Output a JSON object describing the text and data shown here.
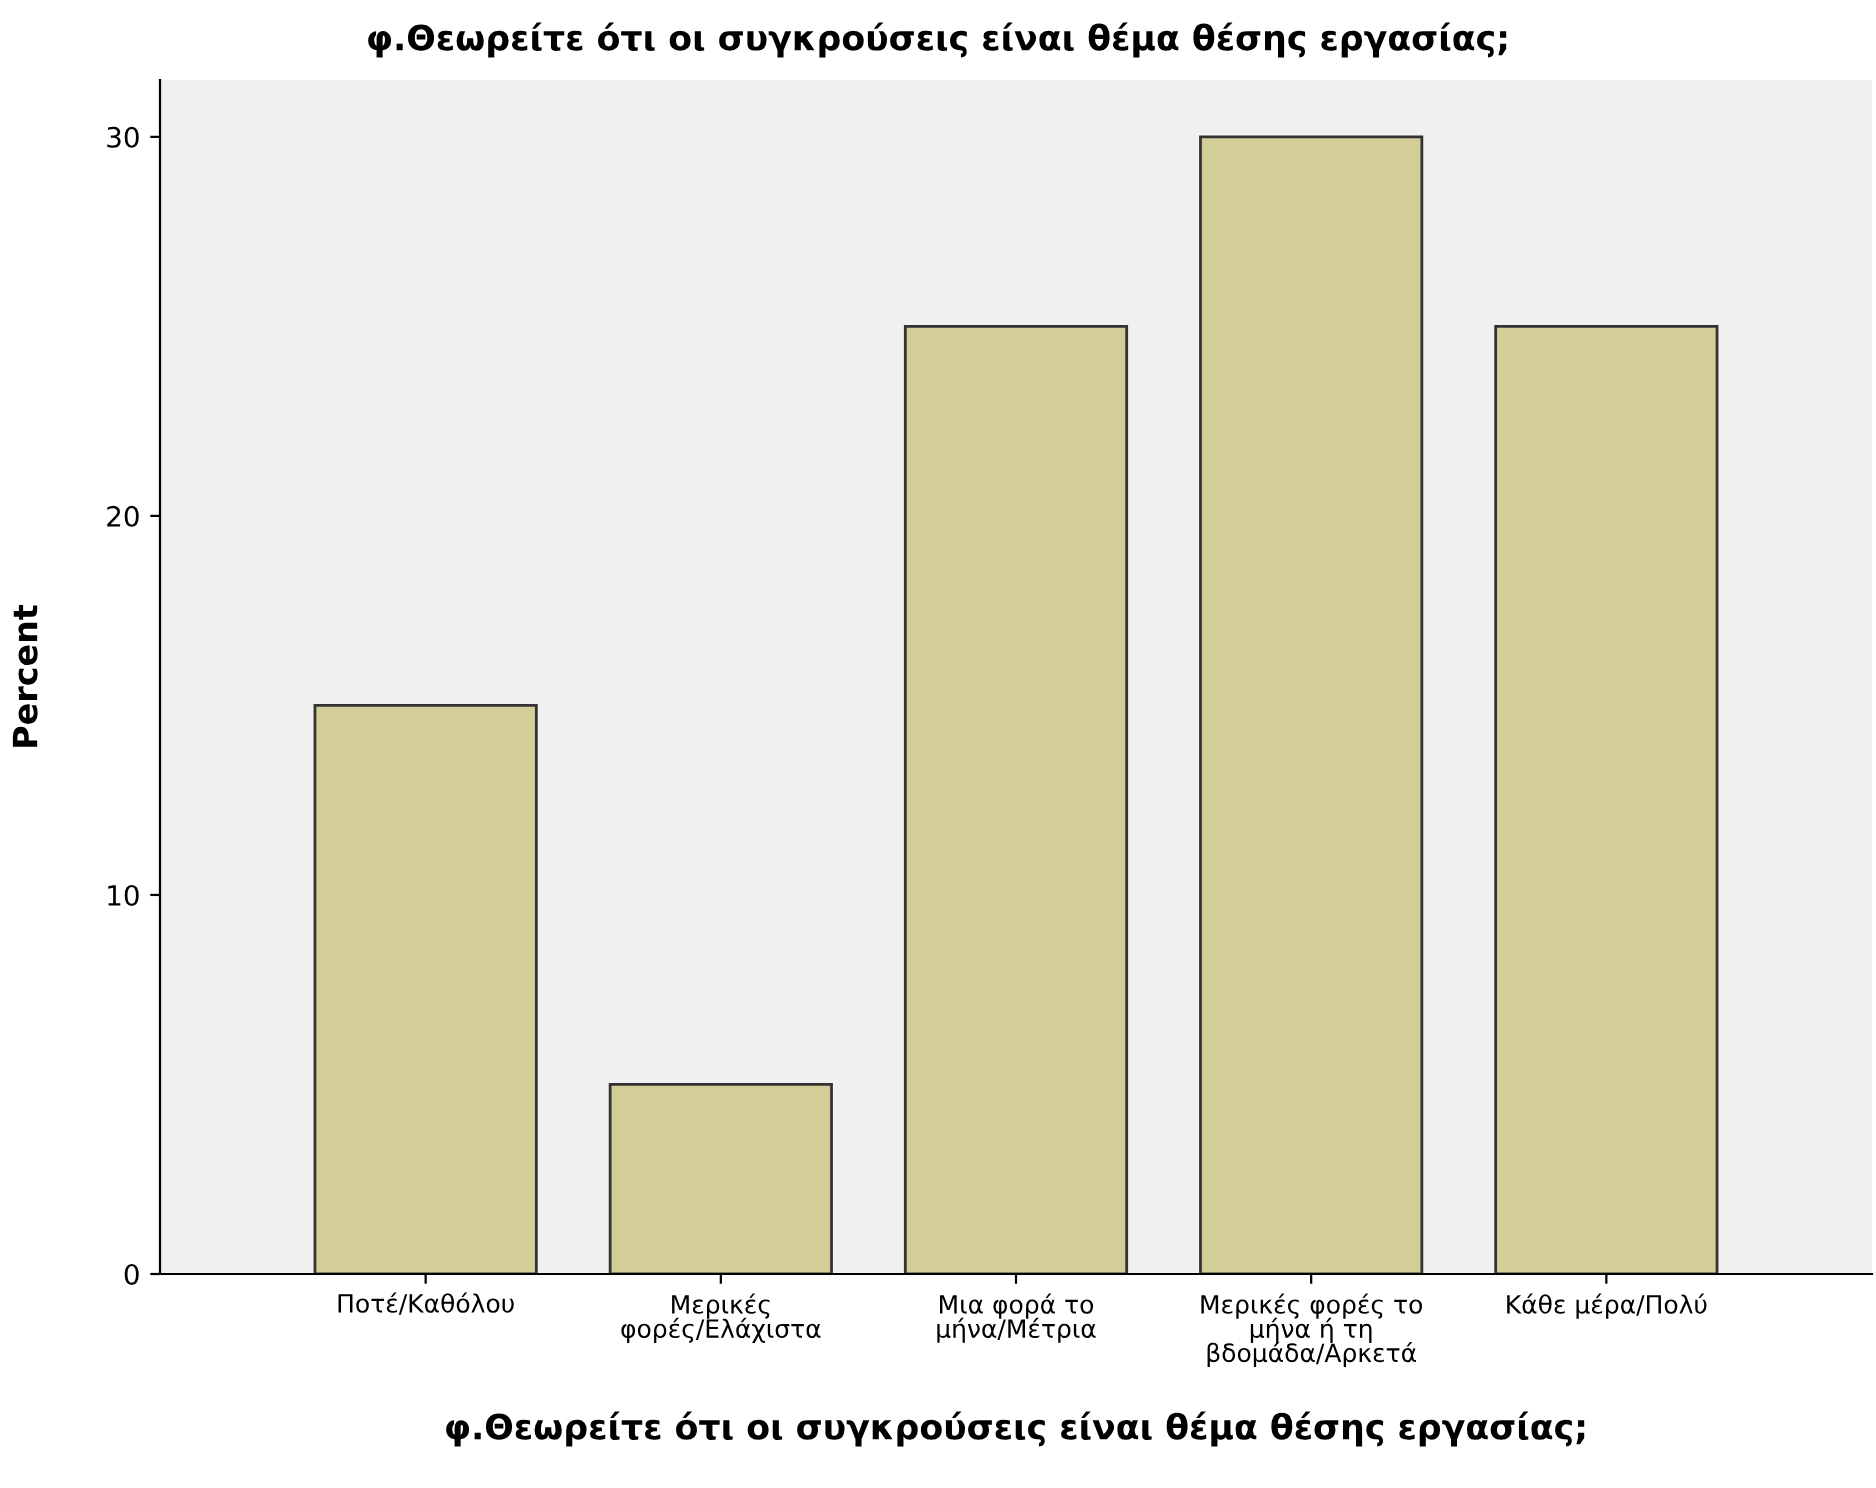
{
  "chart_data": {
    "type": "bar",
    "title": "φ.Θεωρείτε ότι οι συγκρούσεις είναι θέμα θέσης εργασίας;",
    "xlabel": "φ.Θεωρείτε ότι οι συγκρούσεις είναι θέμα θέσης εργασίας;",
    "ylabel": "Percent",
    "categories": [
      "Ποτέ/Καθόλου",
      "Μερικές\nφορές/Ελάχιστα",
      "Μια φορά το\nμήνα/Μέτρια",
      "Μερικές φορές το\nμήνα ή τη\nβδομάδα/Αρκετά",
      "Κάθε μέρα/Πολύ"
    ],
    "values": [
      15,
      5,
      25,
      30,
      25
    ],
    "color": "#d3ce98",
    "ylim": [
      0,
      31.5
    ],
    "yticks": [
      0,
      10,
      20,
      30
    ],
    "grid": false,
    "legend": false
  }
}
